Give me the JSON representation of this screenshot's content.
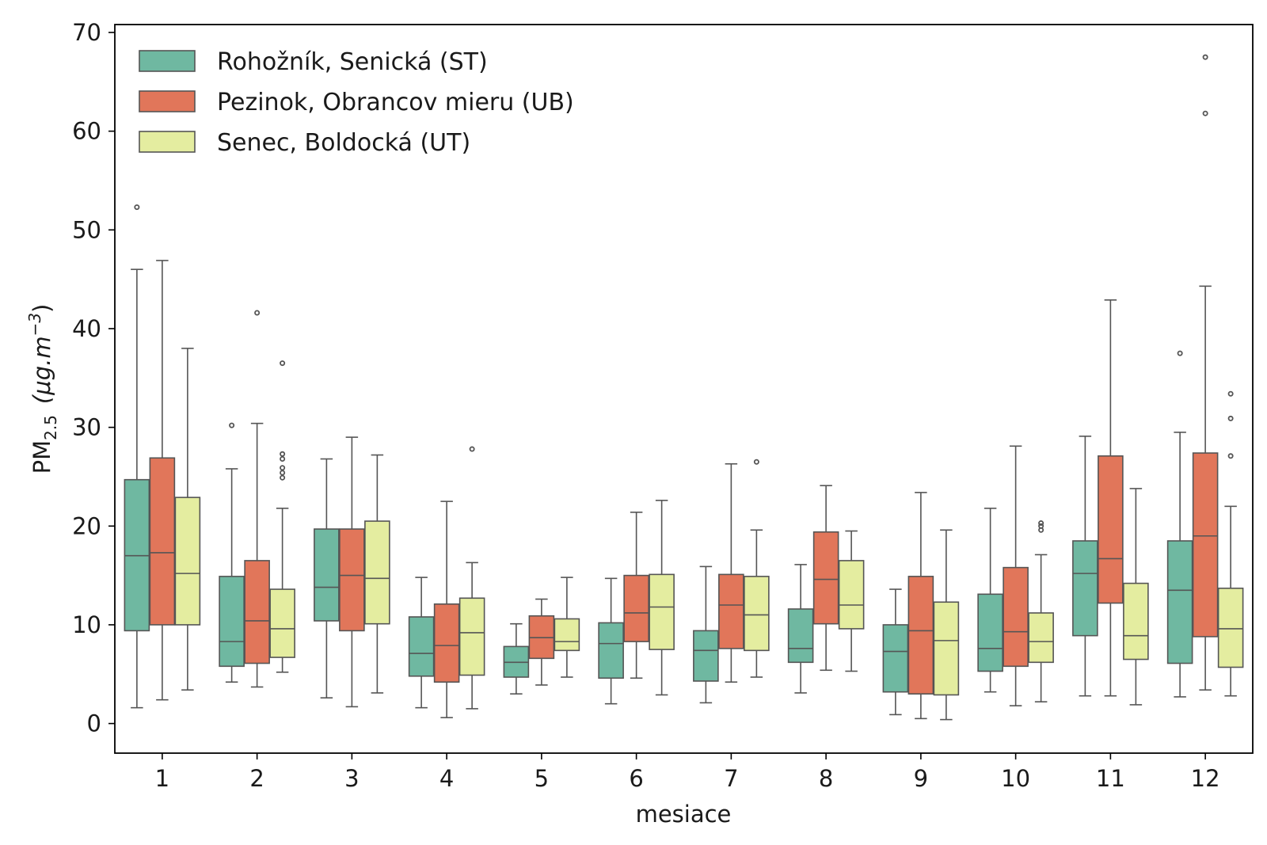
{
  "chart_data": {
    "type": "box",
    "title": "",
    "xlabel": "mesiace",
    "ylabel_main": "PM",
    "ylabel_sub": "2.5",
    "ylabel_unit": "(μg.m",
    "ylabel_exp": "−3",
    "ylabel_close": ")",
    "ylim": [
      -3,
      70.8
    ],
    "yticks": [
      0,
      10,
      20,
      30,
      40,
      50,
      60,
      70
    ],
    "categories": [
      "1",
      "2",
      "3",
      "4",
      "5",
      "6",
      "7",
      "8",
      "9",
      "10",
      "11",
      "12"
    ],
    "legend_position": "top-left",
    "series": [
      {
        "name": "Rohožník, Senická (ST)",
        "color": "#6fb8a1",
        "boxes": [
          {
            "whislo": 1.6,
            "q1": 9.4,
            "med": 17.0,
            "q3": 24.7,
            "whishi": 46.0,
            "fliers": [
              52.3
            ]
          },
          {
            "whislo": 4.2,
            "q1": 5.8,
            "med": 8.3,
            "q3": 14.9,
            "whishi": 25.8,
            "fliers": [
              30.2
            ]
          },
          {
            "whislo": 2.6,
            "q1": 10.4,
            "med": 13.8,
            "q3": 19.7,
            "whishi": 26.8,
            "fliers": []
          },
          {
            "whislo": 1.6,
            "q1": 4.8,
            "med": 7.1,
            "q3": 10.8,
            "whishi": 14.8,
            "fliers": []
          },
          {
            "whislo": 3.0,
            "q1": 4.7,
            "med": 6.2,
            "q3": 7.8,
            "whishi": 10.1,
            "fliers": []
          },
          {
            "whislo": 2.0,
            "q1": 4.6,
            "med": 8.1,
            "q3": 10.2,
            "whishi": 14.7,
            "fliers": []
          },
          {
            "whislo": 2.1,
            "q1": 4.3,
            "med": 7.4,
            "q3": 9.4,
            "whishi": 15.9,
            "fliers": []
          },
          {
            "whislo": 3.1,
            "q1": 6.2,
            "med": 7.6,
            "q3": 11.6,
            "whishi": 16.1,
            "fliers": []
          },
          {
            "whislo": 0.9,
            "q1": 3.2,
            "med": 7.3,
            "q3": 10.0,
            "whishi": 13.6,
            "fliers": []
          },
          {
            "whislo": 3.2,
            "q1": 5.3,
            "med": 7.6,
            "q3": 13.1,
            "whishi": 21.8,
            "fliers": []
          },
          {
            "whislo": 2.8,
            "q1": 8.9,
            "med": 15.2,
            "q3": 18.5,
            "whishi": 29.1,
            "fliers": []
          },
          {
            "whislo": 2.7,
            "q1": 6.1,
            "med": 13.5,
            "q3": 18.5,
            "whishi": 29.5,
            "fliers": [
              37.5
            ]
          }
        ]
      },
      {
        "name": "Pezinok, Obrancov mieru (UB)",
        "color": "#e1765a",
        "boxes": [
          {
            "whislo": 2.4,
            "q1": 10.0,
            "med": 17.3,
            "q3": 26.9,
            "whishi": 46.9,
            "fliers": []
          },
          {
            "whislo": 3.7,
            "q1": 6.1,
            "med": 10.4,
            "q3": 16.5,
            "whishi": 30.4,
            "fliers": [
              41.6
            ]
          },
          {
            "whislo": 1.7,
            "q1": 9.4,
            "med": 15.0,
            "q3": 19.7,
            "whishi": 29.0,
            "fliers": []
          },
          {
            "whislo": 0.6,
            "q1": 4.2,
            "med": 7.9,
            "q3": 12.1,
            "whishi": 22.5,
            "fliers": []
          },
          {
            "whislo": 3.9,
            "q1": 6.6,
            "med": 8.7,
            "q3": 10.9,
            "whishi": 12.6,
            "fliers": []
          },
          {
            "whislo": 4.6,
            "q1": 8.3,
            "med": 11.2,
            "q3": 15.0,
            "whishi": 21.4,
            "fliers": []
          },
          {
            "whislo": 4.2,
            "q1": 7.6,
            "med": 12.0,
            "q3": 15.1,
            "whishi": 26.3,
            "fliers": []
          },
          {
            "whislo": 5.4,
            "q1": 10.1,
            "med": 14.6,
            "q3": 19.4,
            "whishi": 24.1,
            "fliers": []
          },
          {
            "whislo": 0.5,
            "q1": 3.0,
            "med": 9.4,
            "q3": 14.9,
            "whishi": 23.4,
            "fliers": []
          },
          {
            "whislo": 1.8,
            "q1": 5.8,
            "med": 9.3,
            "q3": 15.8,
            "whishi": 28.1,
            "fliers": []
          },
          {
            "whislo": 2.8,
            "q1": 12.2,
            "med": 16.7,
            "q3": 27.1,
            "whishi": 42.9,
            "fliers": []
          },
          {
            "whislo": 3.4,
            "q1": 8.8,
            "med": 19.0,
            "q3": 27.4,
            "whishi": 44.3,
            "fliers": [
              61.8,
              67.5
            ]
          }
        ]
      },
      {
        "name": "Senec, Boldocká (UT)",
        "color": "#e4eda0",
        "boxes": [
          {
            "whislo": 3.4,
            "q1": 10.0,
            "med": 15.2,
            "q3": 22.9,
            "whishi": 38.0,
            "fliers": []
          },
          {
            "whislo": 5.2,
            "q1": 6.7,
            "med": 9.6,
            "q3": 13.6,
            "whishi": 21.8,
            "fliers": [
              24.9,
              25.4,
              25.9,
              26.8,
              27.3,
              36.5
            ]
          },
          {
            "whislo": 3.1,
            "q1": 10.1,
            "med": 14.7,
            "q3": 20.5,
            "whishi": 27.2,
            "fliers": []
          },
          {
            "whislo": 1.5,
            "q1": 4.9,
            "med": 9.2,
            "q3": 12.7,
            "whishi": 16.3,
            "fliers": [
              27.8
            ]
          },
          {
            "whislo": 4.7,
            "q1": 7.4,
            "med": 8.3,
            "q3": 10.6,
            "whishi": 14.8,
            "fliers": []
          },
          {
            "whislo": 2.9,
            "q1": 7.5,
            "med": 11.8,
            "q3": 15.1,
            "whishi": 22.6,
            "fliers": []
          },
          {
            "whislo": 4.7,
            "q1": 7.4,
            "med": 11.0,
            "q3": 14.9,
            "whishi": 19.6,
            "fliers": [
              26.5
            ]
          },
          {
            "whislo": 5.3,
            "q1": 9.6,
            "med": 12.0,
            "q3": 16.5,
            "whishi": 19.5,
            "fliers": []
          },
          {
            "whislo": 0.4,
            "q1": 2.9,
            "med": 8.4,
            "q3": 12.3,
            "whishi": 19.6,
            "fliers": []
          },
          {
            "whislo": 2.2,
            "q1": 6.2,
            "med": 8.3,
            "q3": 11.2,
            "whishi": 17.1,
            "fliers": [
              19.6,
              20.0,
              20.3
            ]
          },
          {
            "whislo": 1.9,
            "q1": 6.5,
            "med": 8.9,
            "q3": 14.2,
            "whishi": 23.8,
            "fliers": []
          },
          {
            "whislo": 2.8,
            "q1": 5.7,
            "med": 9.6,
            "q3": 13.7,
            "whishi": 22.0,
            "fliers": [
              27.1,
              30.9,
              33.4
            ]
          }
        ]
      }
    ]
  }
}
